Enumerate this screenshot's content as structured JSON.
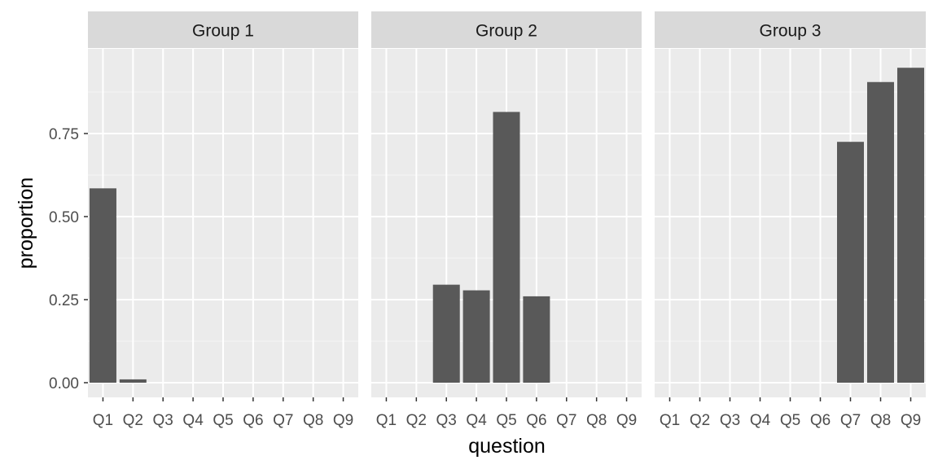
{
  "chart_data": {
    "type": "bar",
    "facet_type": "wrap",
    "xlabel": "question",
    "ylabel": "proportion",
    "categories": [
      "Q1",
      "Q2",
      "Q3",
      "Q4",
      "Q5",
      "Q6",
      "Q7",
      "Q8",
      "Q9"
    ],
    "y_ticks": [
      0.0,
      0.25,
      0.5,
      0.75
    ],
    "y_tick_labels": [
      "0.00",
      "0.25",
      "0.50",
      "0.75"
    ],
    "ylim": [
      0,
      0.95
    ],
    "grid": true,
    "legend": "none",
    "colors": {
      "panel_bg": "#ebebeb",
      "strip_bg": "#d9d9d9",
      "grid_major": "#ffffff",
      "bar_fill": "#595959",
      "text": "#4d4d4d",
      "strip_text": "#1a1a1a",
      "axis_title": "#000000",
      "tick_mark": "#333333"
    },
    "facets": [
      {
        "label": "Group 1",
        "values": [
          0.585,
          0.01,
          0,
          0,
          0,
          0,
          0,
          0,
          0
        ]
      },
      {
        "label": "Group 2",
        "values": [
          0,
          0,
          0.295,
          0.278,
          0.815,
          0.26,
          0,
          0,
          0
        ]
      },
      {
        "label": "Group 3",
        "values": [
          0,
          0,
          0,
          0,
          0,
          0,
          0.725,
          0.905,
          0.948
        ]
      }
    ]
  }
}
